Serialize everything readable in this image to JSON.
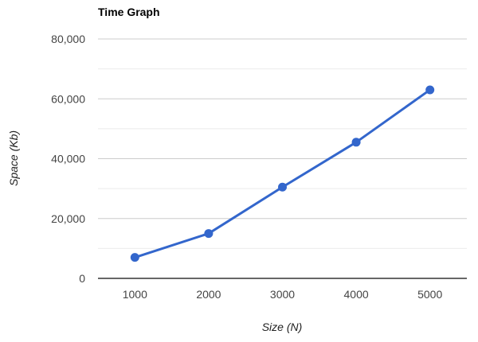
{
  "chart_data": {
    "type": "line",
    "title": "Time Graph",
    "xlabel": "Size (N)",
    "ylabel": "Space (Kb)",
    "categories": [
      "1000",
      "2000",
      "3000",
      "4000",
      "5000"
    ],
    "series": [
      {
        "values": [
          7000,
          15000,
          30500,
          45500,
          63000
        ],
        "color": "#3366cc"
      }
    ],
    "ylim": [
      0,
      80000
    ],
    "yticks": [
      0,
      20000,
      40000,
      60000,
      80000
    ],
    "ytick_labels": [
      "0",
      "20,000",
      "40,000",
      "60,000",
      "80,000"
    ],
    "grid": true,
    "legend": "none"
  }
}
